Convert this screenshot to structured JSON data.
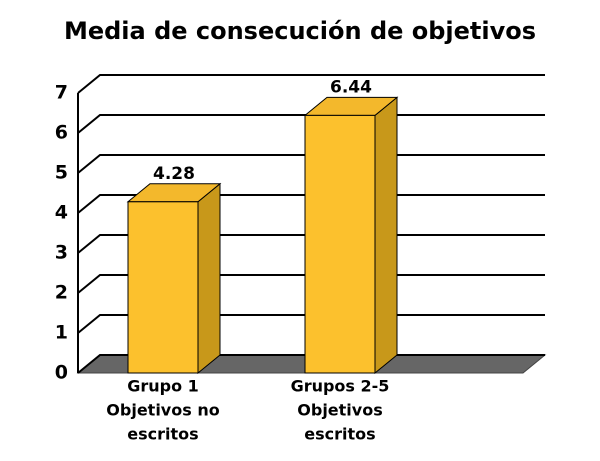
{
  "chart_data": {
    "type": "bar3d",
    "title": "Media de consecución de objetivos",
    "categories": [
      [
        "Grupo 1",
        "Objetivos no",
        "escritos"
      ],
      [
        "Grupos 2-5",
        "Objetivos",
        "escritos"
      ]
    ],
    "values": [
      4.28,
      6.44
    ],
    "color": "#fcc12d",
    "ylim": [
      0,
      7
    ],
    "yticks": [
      0,
      1,
      2,
      3,
      4,
      5,
      6,
      7
    ],
    "grid": true
  }
}
